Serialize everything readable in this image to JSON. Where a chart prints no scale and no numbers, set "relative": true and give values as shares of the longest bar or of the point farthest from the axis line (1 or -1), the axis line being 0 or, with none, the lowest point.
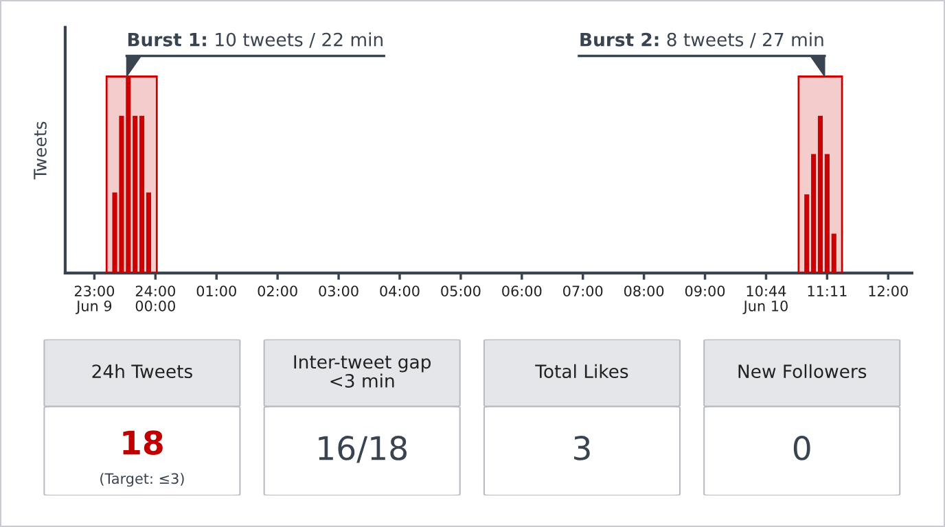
{
  "chart_data": [
    {
      "type": "bar",
      "ylabel": "Tweets",
      "relative": true,
      "tick_labels": "x",
      "grid": false,
      "categories": [
        "23:00\nJun 9",
        null,
        null,
        null,
        null,
        null,
        null,
        null,
        null,
        "24:00\n00:00",
        null,
        null,
        null,
        null,
        null,
        null,
        null,
        null,
        "01:00",
        null,
        null,
        null,
        null,
        null,
        null,
        null,
        null,
        "02:00",
        null,
        null,
        null,
        null,
        null,
        null,
        null,
        null,
        "03:00",
        null,
        null,
        null,
        null,
        null,
        null,
        null,
        null,
        "04:00",
        null,
        null,
        null,
        null,
        null,
        null,
        null,
        null,
        "05:00",
        null,
        null,
        null,
        null,
        null,
        null,
        null,
        null,
        "06:00",
        null,
        null,
        null,
        null,
        null,
        null,
        null,
        null,
        "07:00",
        null,
        null,
        null,
        null,
        null,
        null,
        null,
        null,
        "08:00",
        null,
        null,
        null,
        null,
        null,
        null,
        null,
        null,
        "09:00",
        null,
        null,
        null,
        null,
        null,
        null,
        null,
        null,
        "10:44\nJun 10",
        null,
        null,
        null,
        null,
        null,
        null,
        null,
        null,
        "11:11",
        null,
        null,
        null,
        null,
        null,
        null,
        null,
        null,
        "12:00"
      ],
      "values": [
        null,
        null,
        null,
        0.41,
        0.8,
        1.0,
        0.8,
        0.8,
        0.41,
        null,
        null,
        null,
        null,
        null,
        null,
        null,
        null,
        null,
        null,
        null,
        null,
        null,
        null,
        null,
        null,
        null,
        null,
        null,
        null,
        null,
        null,
        null,
        null,
        null,
        null,
        null,
        null,
        null,
        null,
        null,
        null,
        null,
        null,
        null,
        null,
        null,
        null,
        null,
        null,
        null,
        null,
        null,
        null,
        null,
        null,
        null,
        null,
        null,
        null,
        null,
        null,
        null,
        null,
        null,
        null,
        null,
        null,
        null,
        null,
        null,
        null,
        null,
        null,
        null,
        null,
        null,
        null,
        null,
        null,
        null,
        null,
        null,
        null,
        null,
        null,
        null,
        null,
        null,
        null,
        null,
        null,
        null,
        null,
        null,
        null,
        null,
        null,
        null,
        null,
        null,
        null,
        null,
        null,
        null,
        null,
        0.4,
        0.605,
        0.8,
        0.605,
        0.2,
        null,
        null,
        null,
        null,
        null,
        null,
        null,
        null
      ],
      "color": "#cc0000",
      "annotations": [
        "Burst 1: 10 tweets / 22 min",
        "Burst 2: 8 tweets / 27 min"
      ]
    },
    {
      "type": "other",
      "title": "24h Tweets",
      "annotations": [
        "18",
        "(Target: ≤3)"
      ],
      "color": "#c00000"
    },
    {
      "type": "other",
      "title": "Inter-tweet gap\n<3 min",
      "annotations": [
        "16/18"
      ],
      "color": "#3a4450"
    },
    {
      "type": "other",
      "title": "Total Likes",
      "annotations": [
        "3"
      ],
      "color": "#3a4450"
    },
    {
      "type": "other",
      "title": "New Followers",
      "annotations": [
        "0"
      ],
      "color": "#3a4450"
    }
  ]
}
